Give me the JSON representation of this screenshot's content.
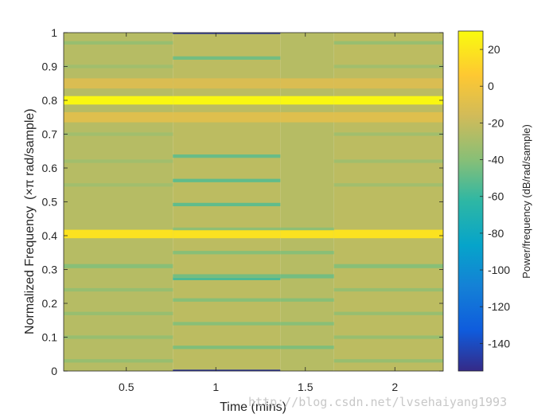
{
  "chart_data": {
    "type": "heatmap",
    "title": "",
    "xlabel": "Time (mins)",
    "ylabel_main": "Normalized Frequency",
    "ylabel_unit": "(×π rad/sample)",
    "colorbar_label": "Power/frequency (dB/rad/sample)",
    "x_ticks": [
      "0.5",
      "1",
      "1.5",
      "2"
    ],
    "x_tick_values": [
      0.5,
      1,
      1.5,
      2
    ],
    "xlim": [
      0.15,
      2.27
    ],
    "y_ticks": [
      "0",
      "0.1",
      "0.2",
      "0.3",
      "0.4",
      "0.5",
      "0.6",
      "0.7",
      "0.8",
      "0.9",
      "1"
    ],
    "y_tick_values": [
      0,
      0.1,
      0.2,
      0.3,
      0.4,
      0.5,
      0.6,
      0.7,
      0.8,
      0.9,
      1
    ],
    "ylim": [
      0,
      1
    ],
    "colorbar_ticks": [
      "20",
      "0",
      "-20",
      "-40",
      "-60",
      "-80",
      "-100",
      "-120",
      "-140"
    ],
    "colorbar_tick_values": [
      20,
      0,
      -20,
      -40,
      -60,
      -80,
      -100,
      -120,
      -140
    ],
    "clim": [
      -155,
      30
    ],
    "colormap": "parula",
    "background_level_db": -25,
    "time_segments": [
      {
        "start": 0.15,
        "end": 0.76
      },
      {
        "start": 0.76,
        "end": 1.36
      },
      {
        "start": 1.36,
        "end": 1.66
      },
      {
        "start": 1.66,
        "end": 2.27
      }
    ],
    "bands": [
      {
        "freq": 0.8,
        "width": 0.025,
        "value": 28,
        "segments": "all"
      },
      {
        "freq": 0.405,
        "width": 0.025,
        "value": 18,
        "segments": "all"
      },
      {
        "freq": 0.0,
        "width": 0.008,
        "value": -150,
        "segments": [
          1
        ]
      },
      {
        "freq": 1.0,
        "width": 0.008,
        "value": -150,
        "segments": [
          1
        ]
      },
      {
        "freq": 0.273,
        "width": 0.008,
        "value": -60,
        "segments": [
          1
        ]
      },
      {
        "freq": 0.492,
        "width": 0.01,
        "value": -50,
        "segments": [
          1
        ]
      },
      {
        "freq": 0.563,
        "width": 0.01,
        "value": -50,
        "segments": [
          1
        ]
      },
      {
        "freq": 0.635,
        "width": 0.01,
        "value": -48,
        "segments": [
          1
        ]
      },
      {
        "freq": 0.925,
        "width": 0.01,
        "value": -45,
        "segments": [
          1
        ]
      },
      {
        "freq": 0.855,
        "width": 0.008,
        "value": -40,
        "segments": [
          1
        ]
      },
      {
        "freq": 0.07,
        "width": 0.01,
        "value": -42,
        "segments": [
          1,
          2
        ]
      },
      {
        "freq": 0.14,
        "width": 0.01,
        "value": -40,
        "segments": [
          1,
          2
        ]
      },
      {
        "freq": 0.21,
        "width": 0.01,
        "value": -40,
        "segments": [
          1,
          2
        ]
      },
      {
        "freq": 0.28,
        "width": 0.012,
        "value": -45,
        "segments": [
          1,
          2
        ]
      },
      {
        "freq": 0.35,
        "width": 0.01,
        "value": -40,
        "segments": [
          1,
          2
        ]
      },
      {
        "freq": 0.42,
        "width": 0.008,
        "value": -38,
        "segments": [
          1,
          2
        ]
      },
      {
        "freq": 0.03,
        "width": 0.01,
        "value": -35,
        "segments": [
          0,
          3
        ]
      },
      {
        "freq": 0.1,
        "width": 0.01,
        "value": -35,
        "segments": [
          0,
          3
        ]
      },
      {
        "freq": 0.17,
        "width": 0.01,
        "value": -35,
        "segments": [
          0,
          3
        ]
      },
      {
        "freq": 0.24,
        "width": 0.01,
        "value": -35,
        "segments": [
          0,
          3
        ]
      },
      {
        "freq": 0.31,
        "width": 0.012,
        "value": -40,
        "segments": [
          0,
          3
        ]
      },
      {
        "freq": 0.97,
        "width": 0.01,
        "value": -35,
        "segments": [
          0,
          3
        ]
      },
      {
        "freq": 0.9,
        "width": 0.01,
        "value": -32,
        "segments": [
          0,
          3
        ]
      },
      {
        "freq": 0.7,
        "width": 0.01,
        "value": -32,
        "segments": [
          0,
          3
        ]
      },
      {
        "freq": 0.62,
        "width": 0.01,
        "value": -32,
        "segments": [
          0,
          3
        ]
      },
      {
        "freq": 0.55,
        "width": 0.01,
        "value": -32,
        "segments": [
          0,
          3
        ]
      },
      {
        "freq": 0.75,
        "width": 0.03,
        "value": -10,
        "segments": "all"
      },
      {
        "freq": 0.85,
        "width": 0.03,
        "value": -12,
        "segments": "all"
      }
    ]
  },
  "watermark": "http://blog.csdn.net/lvsehaiyang1993"
}
